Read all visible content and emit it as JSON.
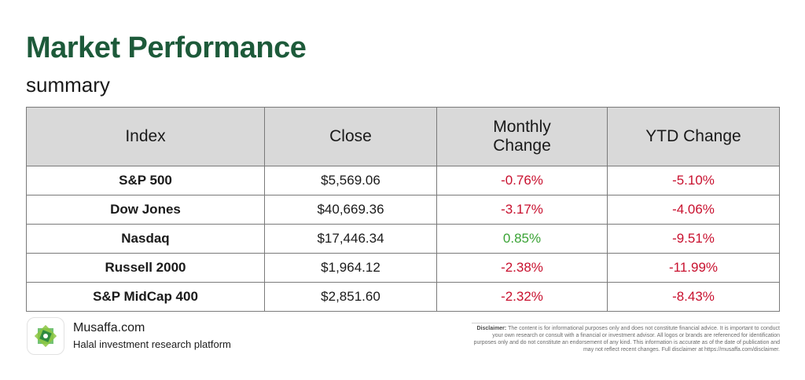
{
  "header": {
    "title": "Market Performance",
    "subtitle": "summary"
  },
  "table": {
    "columns": [
      "Index",
      "Close",
      "Monthly Change",
      "YTD Change"
    ],
    "rows": [
      {
        "index": "S&P 500",
        "close": "$5,569.06",
        "monthly": "-0.76%",
        "ytd": "-5.10%"
      },
      {
        "index": "Dow Jones",
        "close": "$40,669.36",
        "monthly": "-3.17%",
        "ytd": "-4.06%"
      },
      {
        "index": "Nasdaq",
        "close": "$17,446.34",
        "monthly": "0.85%",
        "ytd": "-9.51%"
      },
      {
        "index": "Russell 2000",
        "close": "$1,964.12",
        "monthly": "-2.38%",
        "ytd": "-11.99%"
      },
      {
        "index": "S&P MidCap 400",
        "close": "$2,851.60",
        "monthly": "-2.32%",
        "ytd": "-8.43%"
      }
    ]
  },
  "brand": {
    "name": "Musaffa.com",
    "tagline": "Halal investment research platform",
    "logo_icon": "musaffa-logo-icon"
  },
  "disclaimer": {
    "label": "Disclaimer:",
    "text": "The content is for informational purposes only and does not constitute financial advice. It is important to conduct your own research or consult with a financial or investment advisor. All logos or brands are referenced for identification purposes only and do not constitute an endorsement of any kind. This information is accurate as of the date of publication and may not reflect recent changes. Full disclaimer at https://musaffa.com/disclaimer."
  },
  "colors": {
    "title": "#1d5a3a",
    "negative": "#c8102e",
    "positive": "#3aa335",
    "header_bg": "#d9d9d9",
    "logo_green": "#5cb85c"
  }
}
